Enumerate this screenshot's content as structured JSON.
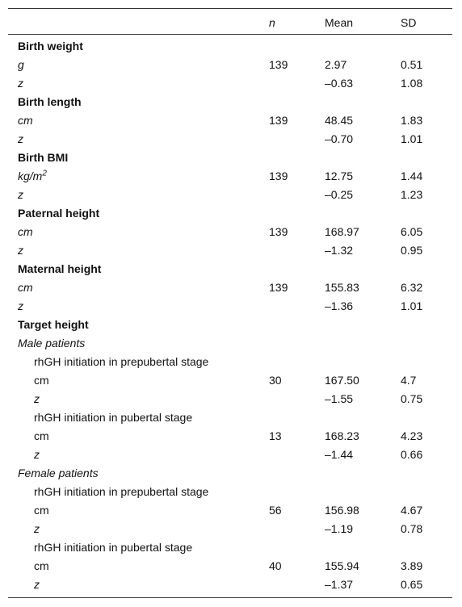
{
  "table": {
    "header": {
      "n": "n",
      "mean": "Mean",
      "sd": "SD"
    },
    "rows": [
      {
        "label": "Birth weight"
      },
      {
        "label": "g",
        "n": "139",
        "mean": "2.97",
        "sd": "0.51"
      },
      {
        "label": "z",
        "mean": "–0.63",
        "sd": "1.08"
      },
      {
        "label": "Birth length"
      },
      {
        "label": "cm",
        "n": "139",
        "mean": "48.45",
        "sd": "1.83"
      },
      {
        "label": "z",
        "mean": "–0.70",
        "sd": "1.01"
      },
      {
        "label": "Birth BMI"
      },
      {
        "label": "kg/m",
        "sup": "2",
        "n": "139",
        "mean": "12.75",
        "sd": "1.44"
      },
      {
        "label": "z",
        "mean": "–0.25",
        "sd": "1.23"
      },
      {
        "label": "Paternal height"
      },
      {
        "label": "cm",
        "n": "139",
        "mean": "168.97",
        "sd": "6.05"
      },
      {
        "label": "z",
        "mean": "–1.32",
        "sd": "0.95"
      },
      {
        "label": "Maternal height"
      },
      {
        "label": "cm",
        "n": "139",
        "mean": "155.83",
        "sd": "6.32"
      },
      {
        "label": "z",
        "mean": "–1.36",
        "sd": "1.01"
      },
      {
        "label": "Target height"
      },
      {
        "label": "Male patients"
      },
      {
        "label": "rhGH initiation in prepubertal stage"
      },
      {
        "label": "cm",
        "n": "30",
        "mean": "167.50",
        "sd": "4.7"
      },
      {
        "label": "z",
        "mean": "–1.55",
        "sd": "0.75"
      },
      {
        "label": "rhGH initiation in pubertal stage"
      },
      {
        "label": "cm",
        "n": "13",
        "mean": "168.23",
        "sd": "4.23"
      },
      {
        "label": "z",
        "mean": "–1.44",
        "sd": "0.66"
      },
      {
        "label": "Female patients"
      },
      {
        "label": "rhGH initiation in prepubertal stage"
      },
      {
        "label": "cm",
        "n": "56",
        "mean": "156.98",
        "sd": "4.67"
      },
      {
        "label": "z",
        "mean": "–1.19",
        "sd": "0.78"
      },
      {
        "label": "rhGH initiation in pubertal stage"
      },
      {
        "label": "cm",
        "n": "40",
        "mean": "155.94",
        "sd": "3.89"
      },
      {
        "label": "z",
        "mean": "–1.37",
        "sd": "0.65"
      }
    ]
  }
}
